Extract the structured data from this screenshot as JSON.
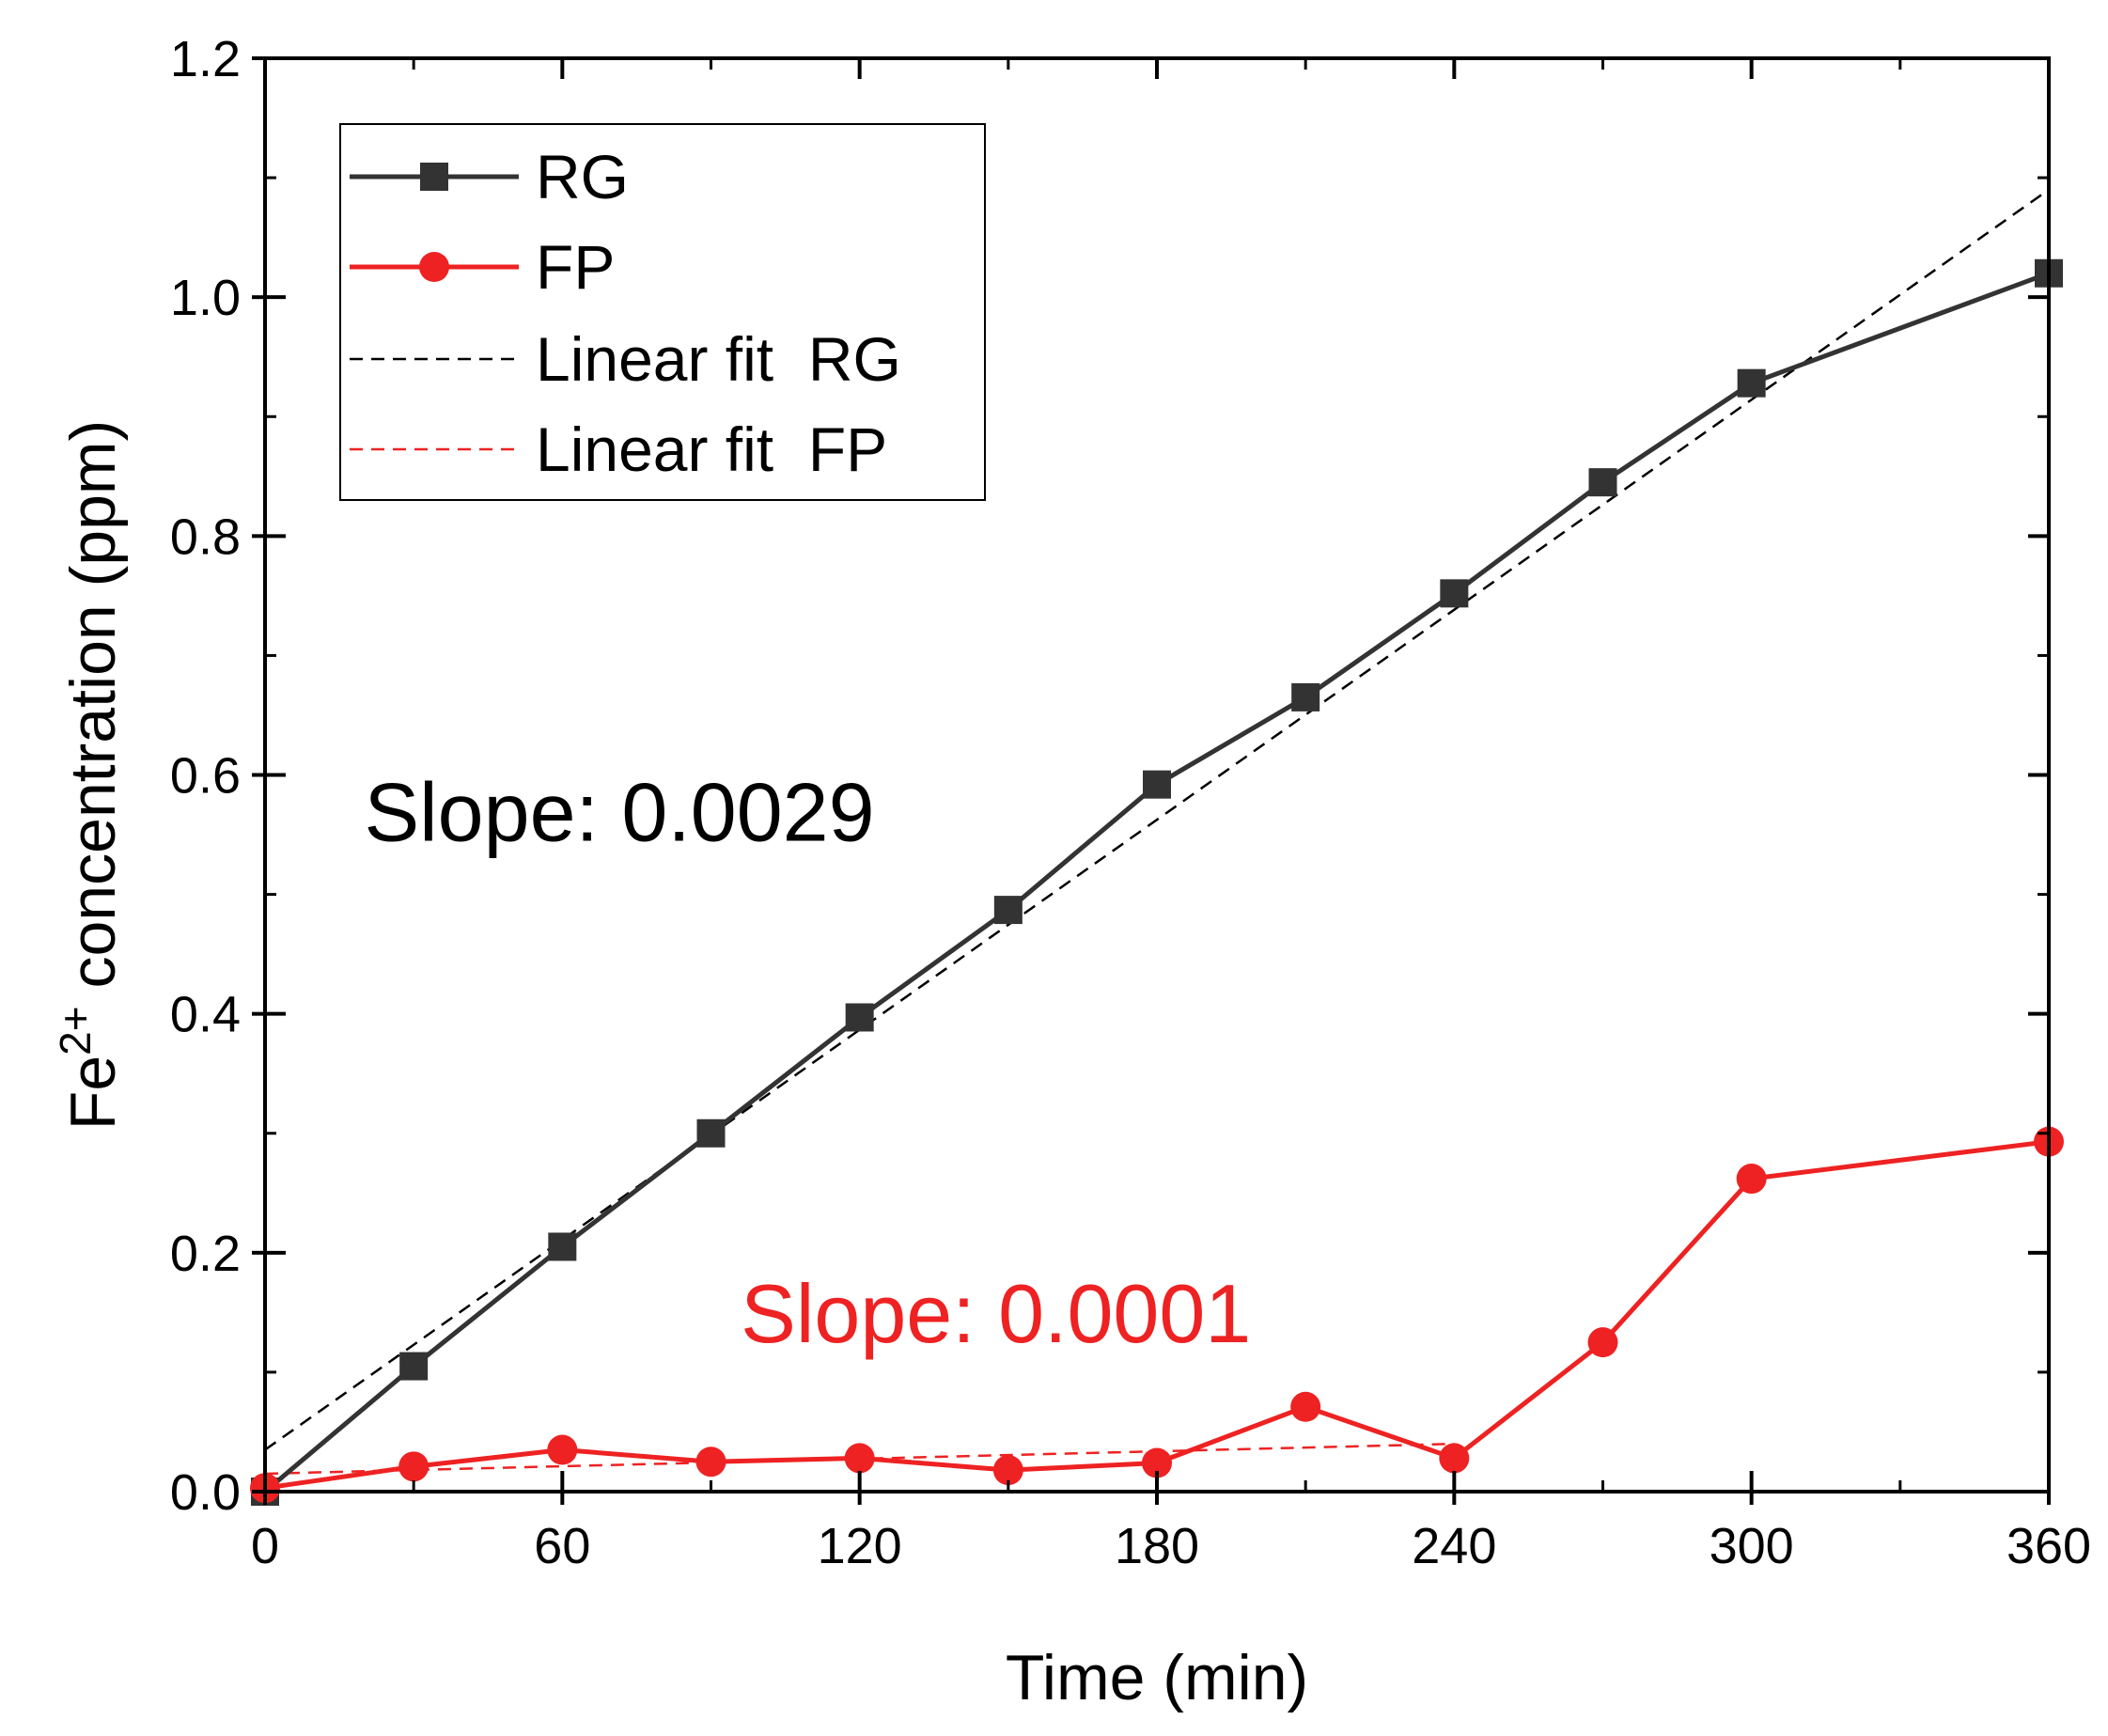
{
  "chart_data": {
    "type": "line",
    "title": "",
    "xlabel": "Time (min)",
    "ylabel_main": "Fe",
    "ylabel_sup": "2+",
    "ylabel_rest": " concentration (ppm)",
    "xlim": [
      0,
      360
    ],
    "ylim": [
      0,
      1.2
    ],
    "xticks": [
      0,
      60,
      120,
      180,
      240,
      300,
      360
    ],
    "xtick_labels": [
      "0",
      "60",
      "120",
      "180",
      "240",
      "300",
      "360"
    ],
    "yticks": [
      0.0,
      0.2,
      0.4,
      0.6,
      0.8,
      1.0,
      1.2
    ],
    "ytick_labels": [
      "0.0",
      "0.2",
      "0.4",
      "0.6",
      "0.8",
      "1.0",
      "1.2"
    ],
    "grid": false,
    "legend_position": "top-left",
    "series": [
      {
        "name": "RG",
        "color": "#333333",
        "marker": "square",
        "x": [
          0,
          30,
          60,
          90,
          120,
          150,
          180,
          210,
          240,
          270,
          300,
          360
        ],
        "y": [
          0.0,
          0.105,
          0.205,
          0.3,
          0.397,
          0.487,
          0.592,
          0.665,
          0.752,
          0.845,
          0.928,
          1.02
        ]
      },
      {
        "name": "FP",
        "color": "#ee2222",
        "marker": "circle",
        "x": [
          0,
          30,
          60,
          90,
          120,
          150,
          180,
          210,
          240,
          270,
          300,
          360
        ],
        "y": [
          0.003,
          0.021,
          0.035,
          0.025,
          0.028,
          0.018,
          0.024,
          0.071,
          0.028,
          0.125,
          0.262,
          0.293
        ]
      }
    ],
    "fits": [
      {
        "name": "Linear fit  RG",
        "color": "#000000",
        "style": "dashed",
        "x": [
          0,
          360
        ],
        "y": [
          0.035,
          1.09
        ]
      },
      {
        "name": "Linear fit  FP",
        "color": "#ee2222",
        "style": "dashed",
        "x": [
          0,
          240
        ],
        "y": [
          0.015,
          0.04
        ]
      }
    ],
    "annotations": [
      {
        "text": "Slope: 0.0029",
        "color": "#000000",
        "x": 20,
        "y": 0.545
      },
      {
        "text": "Slope: 0.0001",
        "color": "#ee2222",
        "x": 96,
        "y": 0.125
      }
    ]
  }
}
